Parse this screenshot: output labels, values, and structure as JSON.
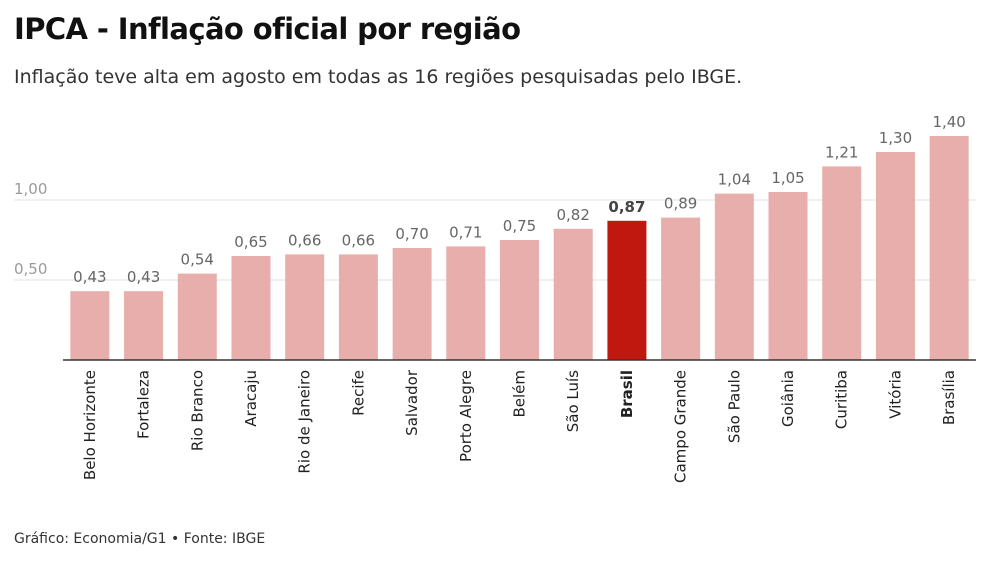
{
  "title": "IPCA - Inflação oficial por região",
  "subtitle": "Inflação teve alta em agosto em todas as 16 regiões pesquisadas pelo IBGE.",
  "footer": "Gráfico: Economia/G1 • Fonte: IBGE",
  "colors": {
    "bar": "#e8aeab",
    "bar_highlight": "#c0170f",
    "gridline": "#e2e2e2",
    "axis": "#333333"
  },
  "chart_data": {
    "type": "bar",
    "categories": [
      "Belo Horizonte",
      "Fortaleza",
      "Rio Branco",
      "Aracaju",
      "Rio de Janeiro",
      "Recife",
      "Salvador",
      "Porto Alegre",
      "Belém",
      "São Luís",
      "Brasil",
      "Campo Grande",
      "São Paulo",
      "Goiânia",
      "Curitiba",
      "Vitória",
      "Brasília"
    ],
    "values": [
      0.43,
      0.43,
      0.54,
      0.65,
      0.66,
      0.66,
      0.7,
      0.71,
      0.75,
      0.82,
      0.87,
      0.89,
      1.04,
      1.05,
      1.21,
      1.3,
      1.4
    ],
    "value_labels": [
      "0,43",
      "0,43",
      "0,54",
      "0,65",
      "0,66",
      "0,66",
      "0,70",
      "0,71",
      "0,75",
      "0,82",
      "0,87",
      "0,89",
      "1,04",
      "1,05",
      "1,21",
      "1,30",
      "1,40"
    ],
    "highlight_category": "Brasil",
    "yticks": [
      0.5,
      1.0
    ],
    "ytick_labels": [
      "0,50",
      "1,00"
    ],
    "ylim": [
      0,
      1.4
    ],
    "grid": true,
    "xlabel": "",
    "ylabel": ""
  }
}
